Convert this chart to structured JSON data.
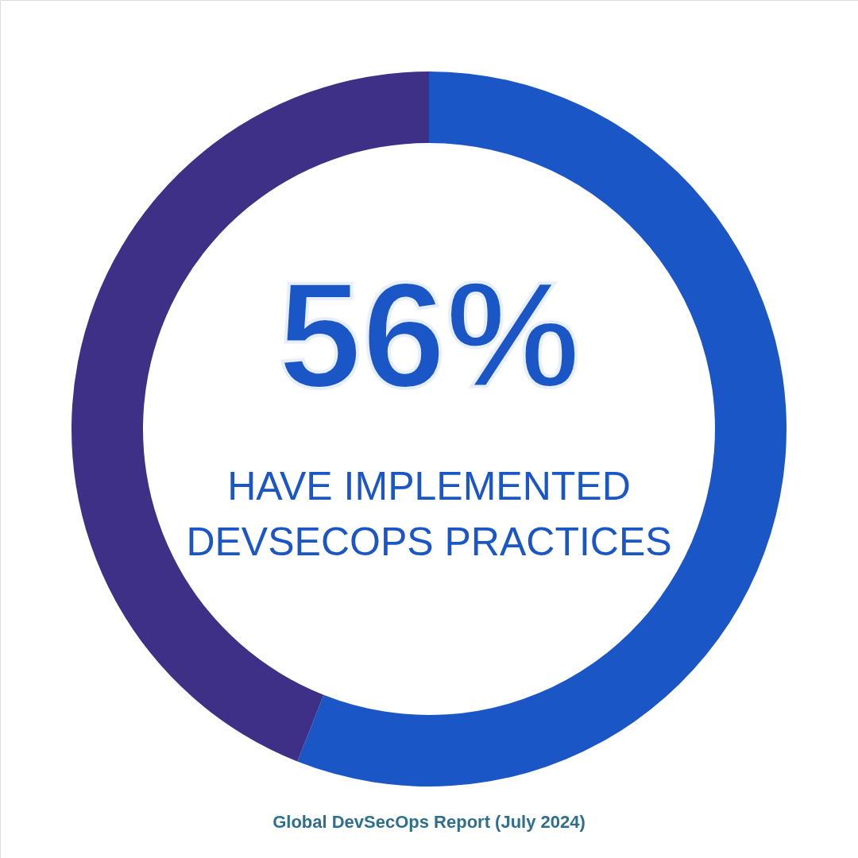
{
  "chart_data": {
    "type": "donut",
    "categories": [
      "HAVE IMPLEMENTED DEVSECOPS PRACTICES",
      null
    ],
    "values": [
      56,
      44
    ],
    "colors": [
      "#1a56c6",
      "#3e3087"
    ],
    "value_labels": [
      "56%",
      null
    ],
    "annotations": [
      "Global DevSecOps Report (July 2024)"
    ]
  }
}
